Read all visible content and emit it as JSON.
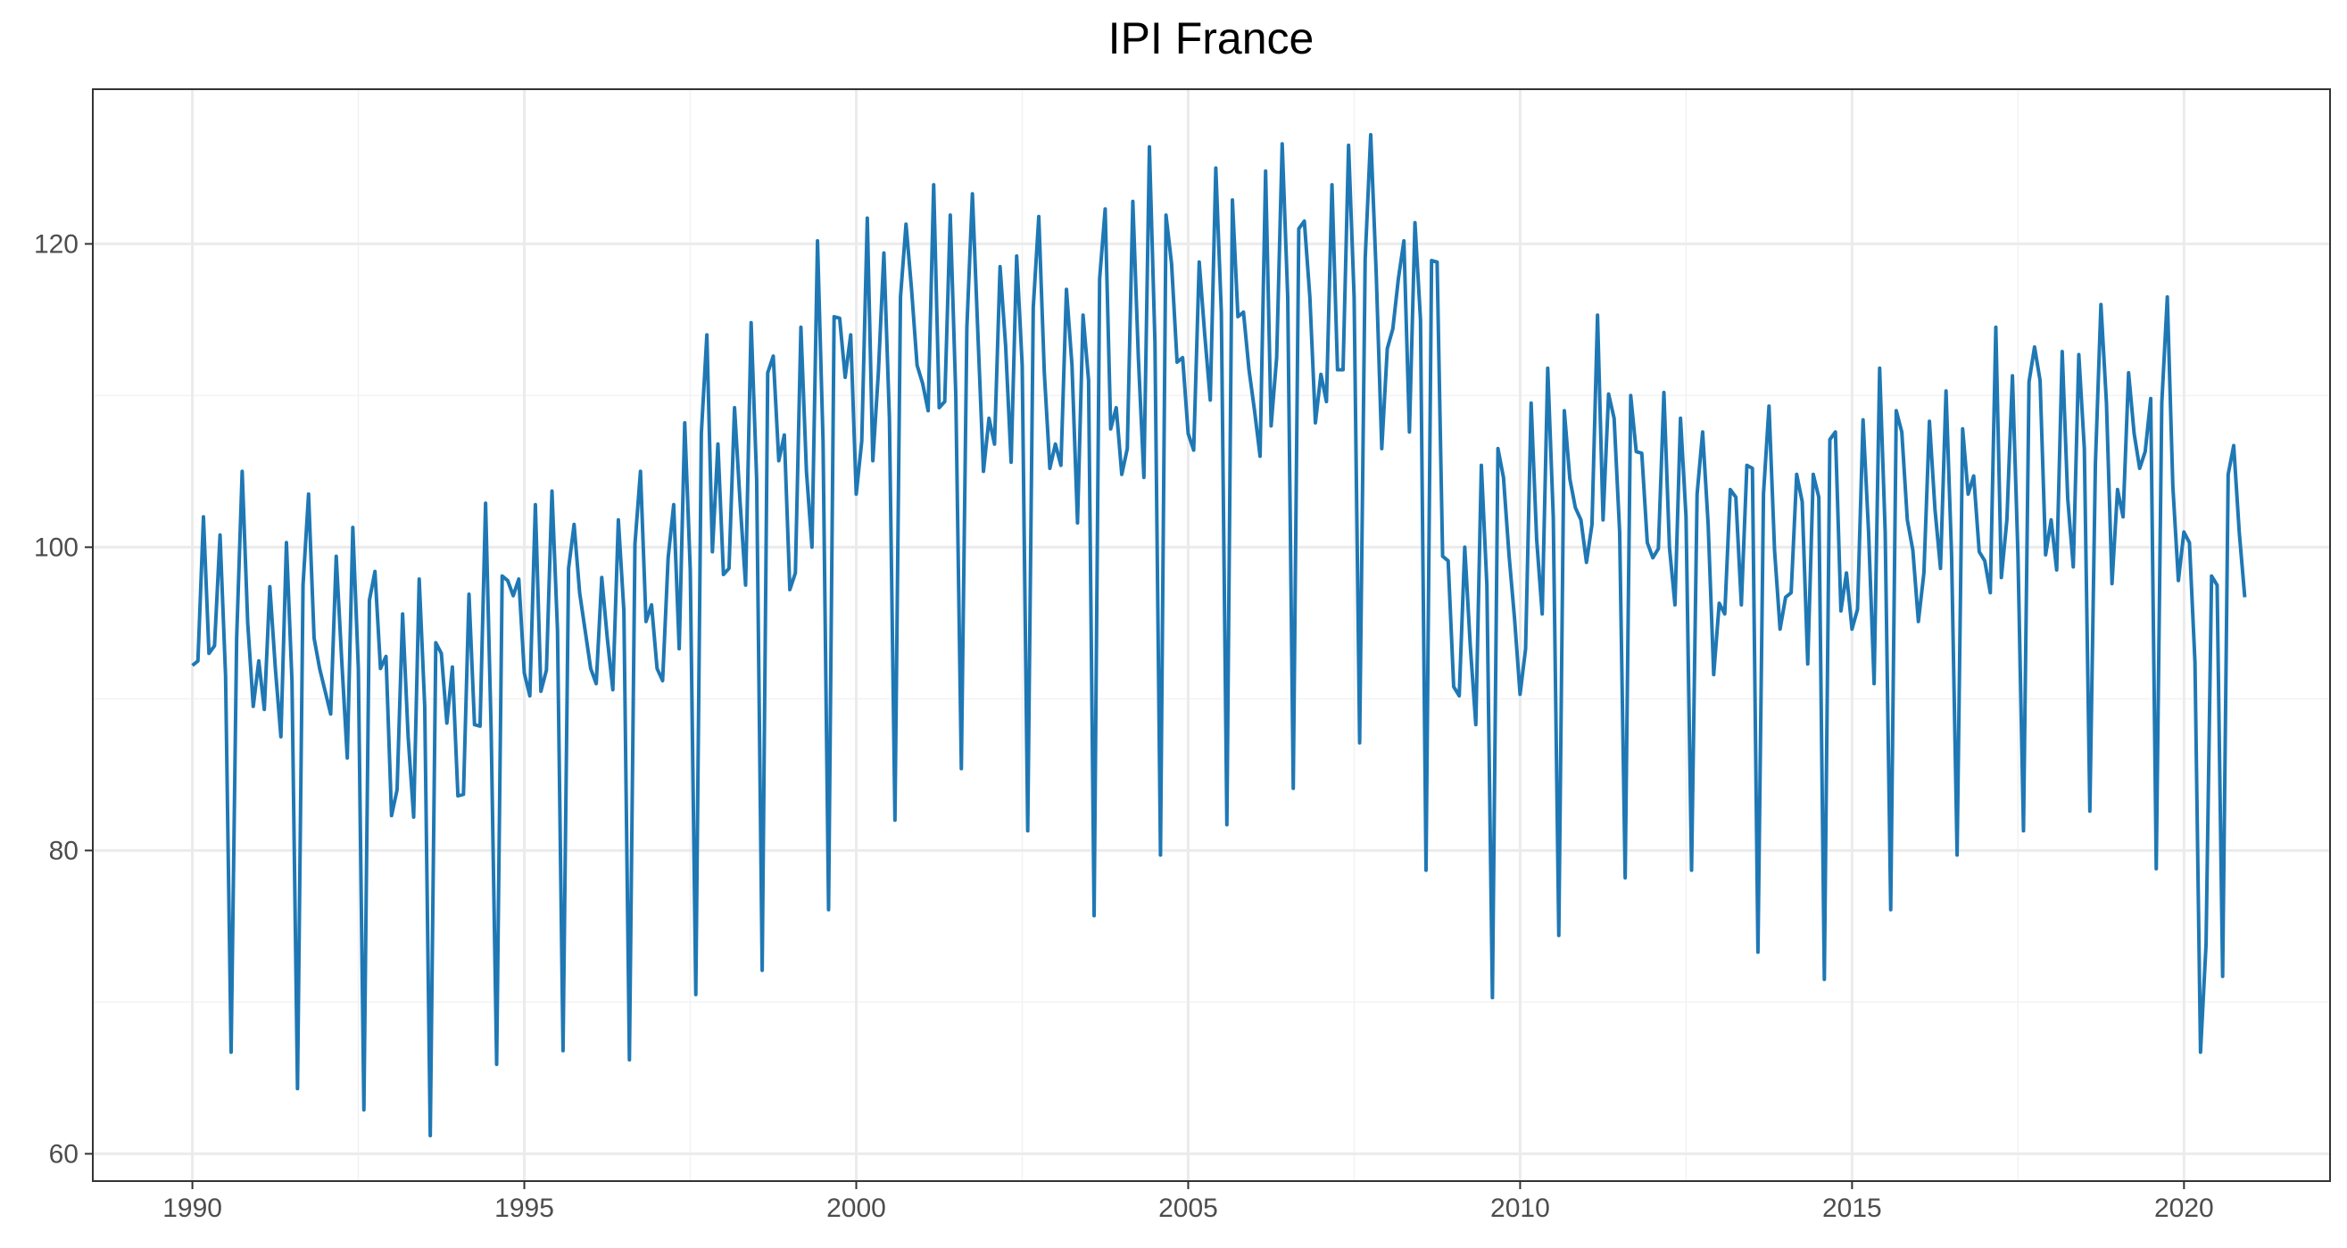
{
  "chart_data": {
    "type": "line",
    "title": "IPI France",
    "subtitle": "",
    "xlabel": "",
    "ylabel": "",
    "xlim": [
      1988.5,
      2022.2
    ],
    "ylim": [
      58.2,
      130.2
    ],
    "x_ticks": [
      1990,
      1995,
      2000,
      2005,
      2010,
      2015,
      2020
    ],
    "x_tick_labels": [
      "1990",
      "1995",
      "2000",
      "2005",
      "2010",
      "2015",
      "2020"
    ],
    "y_ticks": [
      60,
      80,
      100,
      120
    ],
    "y_tick_labels": [
      "60",
      "80",
      "100",
      "120"
    ],
    "grid": true,
    "legend": "none",
    "series": [
      {
        "color": "#1f78b4",
        "start": 1990.0,
        "step": 0.08333,
        "values": [
          92.2,
          92.5,
          102.0,
          93.0,
          93.5,
          100.8,
          91.5,
          66.7,
          94.0,
          105.0,
          95.0,
          89.5,
          92.5,
          89.3,
          97.4,
          92.0,
          87.5,
          100.3,
          91.2,
          64.3,
          97.5,
          103.5,
          94.0,
          92.0,
          90.5,
          89.0,
          99.4,
          92.5,
          86.1,
          101.3,
          92.0,
          62.9,
          96.5,
          98.4,
          92.0,
          92.8,
          82.3,
          84.0,
          95.6,
          87.5,
          82.2,
          97.9,
          89.5,
          61.2,
          93.7,
          93.0,
          88.4,
          92.1,
          83.6,
          83.7,
          96.9,
          88.3,
          88.2,
          102.9,
          88.0,
          65.9,
          98.1,
          97.8,
          96.8,
          97.9,
          91.7,
          90.2,
          102.8,
          90.5,
          91.9,
          103.7,
          94.5,
          66.8,
          98.6,
          101.5,
          97.0,
          94.5,
          92.0,
          91.0,
          98.0,
          94.0,
          90.6,
          101.8,
          95.8,
          66.2,
          100.2,
          105.0,
          95.1,
          96.2,
          92.0,
          91.2,
          99.3,
          102.8,
          93.3,
          108.2,
          98.5,
          70.5,
          107.5,
          114.0,
          99.7,
          106.8,
          98.2,
          98.6,
          109.2,
          103.0,
          97.5,
          114.8,
          104.5,
          72.1,
          111.5,
          112.6,
          105.7,
          107.4,
          97.2,
          98.3,
          114.5,
          105.0,
          100.0,
          120.2,
          107.0,
          76.1,
          115.2,
          115.1,
          111.2,
          114.0,
          103.5,
          107.0,
          121.7,
          105.7,
          111.5,
          119.4,
          108.5,
          82.0,
          116.5,
          121.3,
          117.0,
          112.0,
          110.8,
          109.0,
          123.9,
          109.2,
          109.6,
          121.9,
          110.0,
          85.4,
          114.5,
          123.3,
          114.0,
          105.0,
          108.5,
          106.8,
          118.5,
          113.3,
          105.6,
          119.2,
          112.0,
          81.3,
          115.8,
          121.8,
          111.5,
          105.2,
          106.8,
          105.4,
          117.0,
          112.0,
          101.6,
          115.3,
          111.0,
          75.7,
          117.7,
          122.3,
          107.8,
          109.2,
          104.8,
          106.5,
          122.8,
          112.5,
          104.6,
          126.4,
          113.5,
          79.7,
          121.9,
          118.7,
          112.2,
          112.5,
          107.5,
          106.4,
          118.8,
          114.0,
          109.7,
          125.0,
          115.5,
          81.7,
          122.9,
          115.2,
          115.5,
          111.7,
          109.0,
          106.0,
          124.8,
          108.0,
          112.5,
          126.6,
          116.5,
          84.1,
          121.0,
          121.5,
          116.5,
          108.2,
          111.4,
          109.6,
          123.9,
          111.7,
          111.7,
          126.5,
          116.5,
          87.1,
          119.0,
          127.2,
          118.0,
          106.5,
          113.1,
          114.4,
          117.7,
          120.2,
          107.6,
          121.4,
          115.0,
          78.7,
          118.9,
          118.8,
          99.4,
          99.1,
          90.8,
          90.2,
          100.0,
          93.5,
          88.3,
          105.4,
          97.5,
          70.3,
          106.5,
          104.6,
          99.5,
          95.3,
          90.3,
          93.3,
          109.5,
          100.5,
          95.6,
          111.8,
          102.0,
          74.4,
          109.0,
          104.5,
          102.6,
          101.8,
          99.0,
          101.5,
          115.3,
          101.8,
          110.1,
          108.5,
          101.0,
          78.2,
          110.0,
          106.3,
          106.2,
          100.3,
          99.3,
          99.9,
          110.2,
          100.0,
          96.2,
          108.5,
          102.0,
          78.7,
          103.5,
          107.6,
          101.5,
          91.6,
          96.3,
          95.6,
          103.8,
          103.3,
          96.2,
          105.4,
          105.2,
          73.3,
          103.5,
          109.3,
          99.8,
          94.6,
          96.7,
          97.0,
          104.8,
          103.0,
          92.3,
          104.8,
          103.3,
          71.5,
          107.1,
          107.6,
          95.8,
          98.3,
          94.6,
          95.9,
          108.4,
          101.0,
          91.0,
          111.8,
          101.0,
          76.1,
          109.0,
          107.6,
          101.8,
          99.8,
          95.1,
          98.3,
          108.3,
          102.5,
          98.6,
          110.3,
          99.5,
          79.7,
          107.8,
          103.5,
          104.7,
          99.7,
          99.1,
          97.0,
          114.5,
          98.0,
          101.8,
          111.3,
          99.5,
          81.3,
          110.9,
          113.2,
          111.0,
          99.5,
          101.8,
          98.5,
          112.9,
          103.2,
          98.7,
          112.7,
          106.5,
          82.6,
          105.5,
          116.0,
          109.5,
          97.6,
          103.8,
          102.0,
          111.5,
          107.5,
          105.2,
          106.3,
          109.8,
          78.8,
          109.5,
          116.5,
          104.0,
          97.8,
          101.0,
          100.3,
          92.4,
          66.7,
          73.8,
          98.1,
          97.5,
          71.7,
          104.8,
          106.7,
          101.0,
          96.7
        ]
      }
    ]
  }
}
